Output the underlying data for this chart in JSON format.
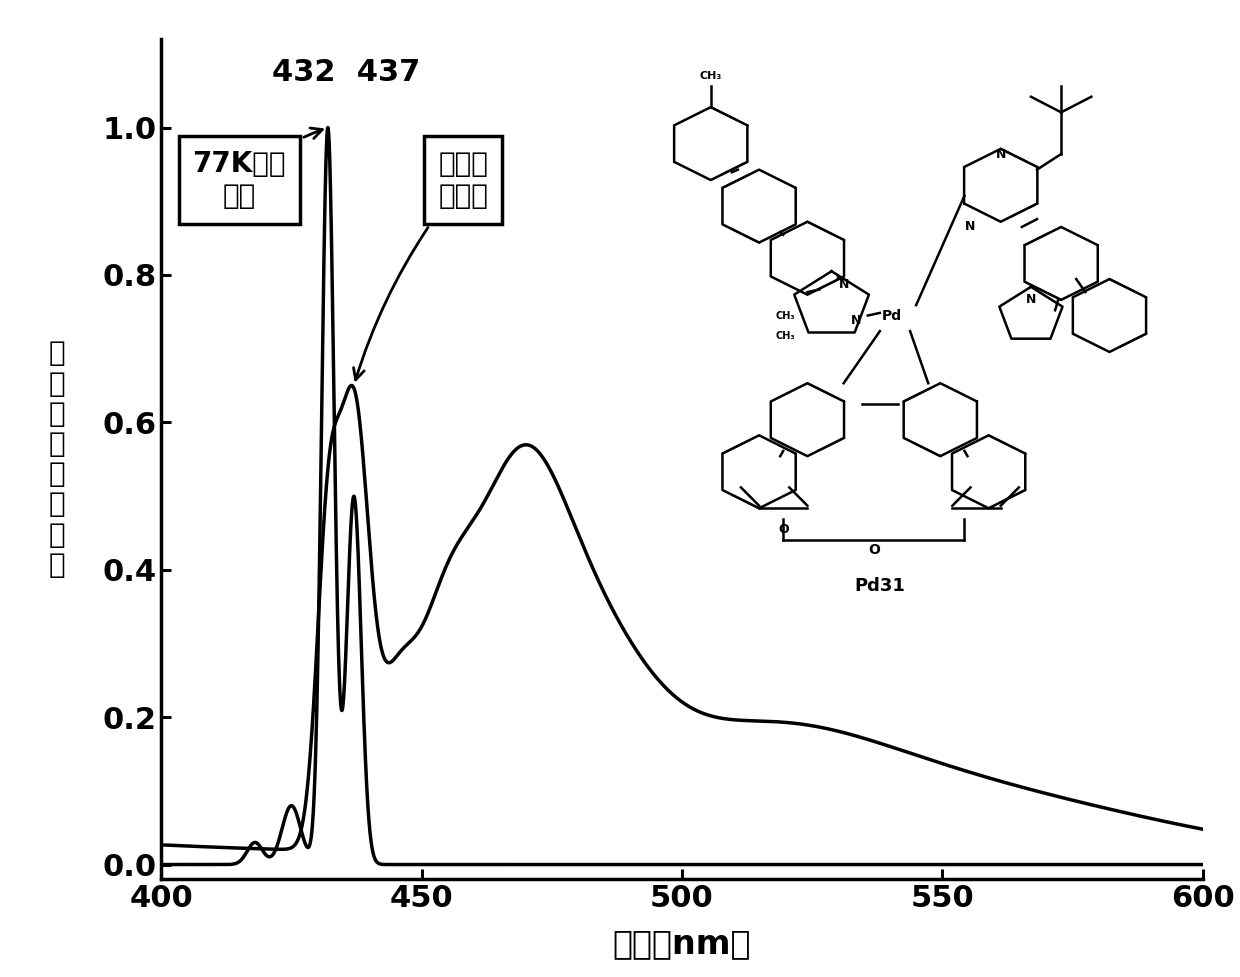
{
  "xlim": [
    400,
    600
  ],
  "ylim": [
    -0.02,
    1.12
  ],
  "xticks": [
    400,
    450,
    500,
    550,
    600
  ],
  "yticks": [
    0.0,
    0.2,
    0.4,
    0.6,
    0.8,
    1.0
  ],
  "xlabel": "波长（nm）",
  "ylabel_chars": [
    "归",
    "一",
    "化",
    "的",
    "发",
    "光",
    "强",
    "度"
  ],
  "label_77k": "77K发射\n光谱",
  "label_rt": "室温发\n射光谱",
  "peak_label": "432  437",
  "compound_label": "Pd31",
  "line_color": "#000000",
  "bg_color": "#ffffff",
  "tick_fontsize": 22,
  "label_fontsize": 24,
  "annotation_fontsize": 20,
  "lw": 2.5
}
